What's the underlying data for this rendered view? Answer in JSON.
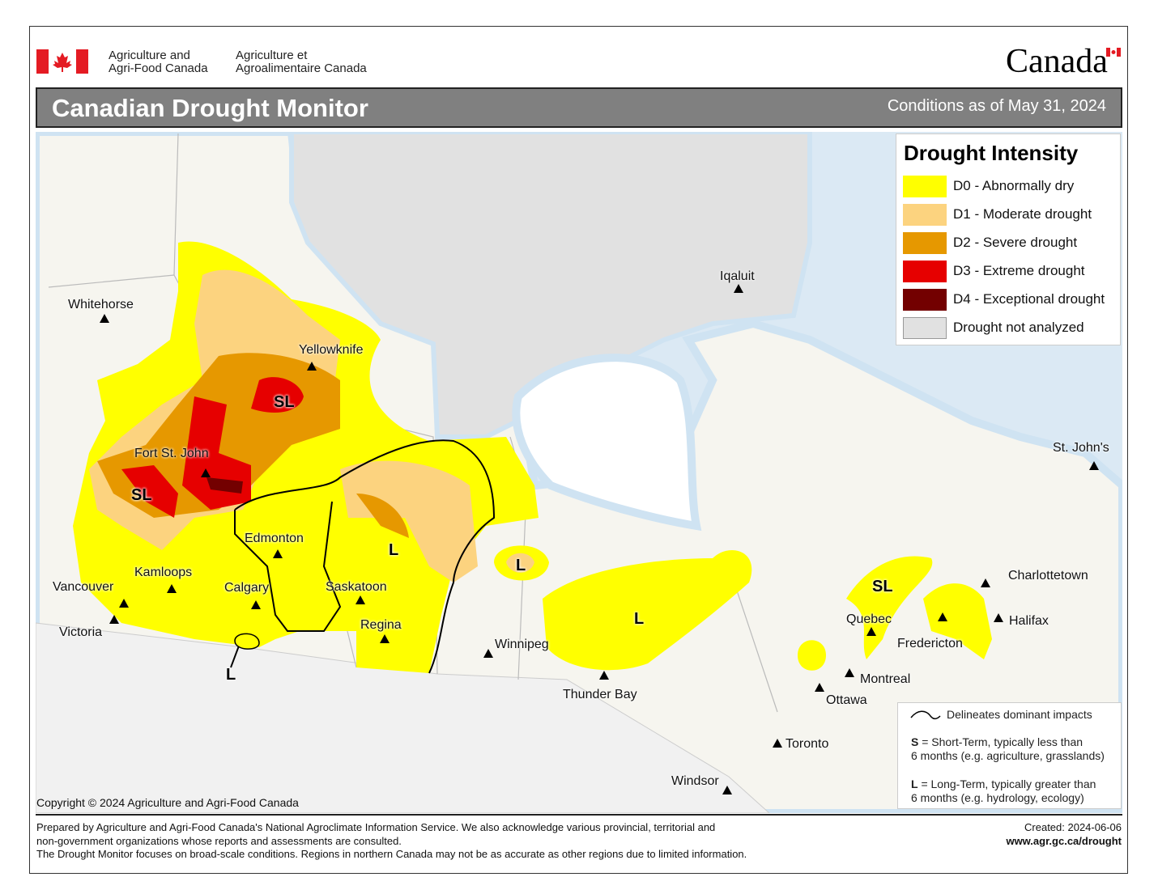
{
  "header": {
    "org_en_line1": "Agriculture and",
    "org_en_line2": "Agri-Food Canada",
    "org_fr_line1": "Agriculture et",
    "org_fr_line2": "Agroalimentaire Canada",
    "wordmark": "Canada",
    "title": "Canadian Drought Monitor",
    "conditions": "Conditions as of May 31, 2024"
  },
  "legend": {
    "title": "Drought Intensity",
    "items": [
      {
        "label": "D0 - Abnormally dry",
        "color": "#ffff00"
      },
      {
        "label": "D1 - Moderate drought",
        "color": "#fcd37f"
      },
      {
        "label": "D2 - Severe drought",
        "color": "#e69800"
      },
      {
        "label": "D3 - Extreme drought",
        "color": "#e60000"
      },
      {
        "label": "D4 - Exceptional drought",
        "color": "#730000"
      },
      {
        "label": "Drought not analyzed",
        "color": "#e1e1e1"
      }
    ]
  },
  "impacts_note": {
    "line": "Delineates dominant impacts",
    "s_key": "S",
    "s_text": " = Short-Term, typically less than",
    "s_text2": "6 months (e.g. agriculture, grasslands)",
    "l_key": "L",
    "l_text": " = Long-Term, typically greater  than",
    "l_text2": "6 months (e.g. hydrology, ecology)"
  },
  "cities": [
    "Whitehorse",
    "Yellowknife",
    "Iqaluit",
    "Fort St. John",
    "Edmonton",
    "Kamloops",
    "Vancouver",
    "Victoria",
    "Calgary",
    "Saskatoon",
    "Regina",
    "Winnipeg",
    "Thunder Bay",
    "Quebec",
    "Montreal",
    "Ottawa",
    "Toronto",
    "Windsor",
    "Fredericton",
    "Halifax",
    "Charlottetown",
    "St. John's"
  ],
  "impact_labels": [
    "SL",
    "SL",
    "L",
    "L",
    "L",
    "L",
    "SL"
  ],
  "copyright": "Copyright © 2024 Agriculture and Agri-Food Canada",
  "footer": {
    "line1": "Prepared by Agriculture and Agri-Food Canada's National Agroclimate Information Service.  We also acknowledge various provincial, territorial and",
    "line2": "non-government organizations whose reports and assessments are consulted.",
    "line3": "The Drought Monitor focuses on broad-scale conditions.  Regions in northern Canada may not be as accurate as other regions due to limited information.",
    "created": "Created: 2024-06-06",
    "url": "www.agr.gc.ca/drought"
  }
}
